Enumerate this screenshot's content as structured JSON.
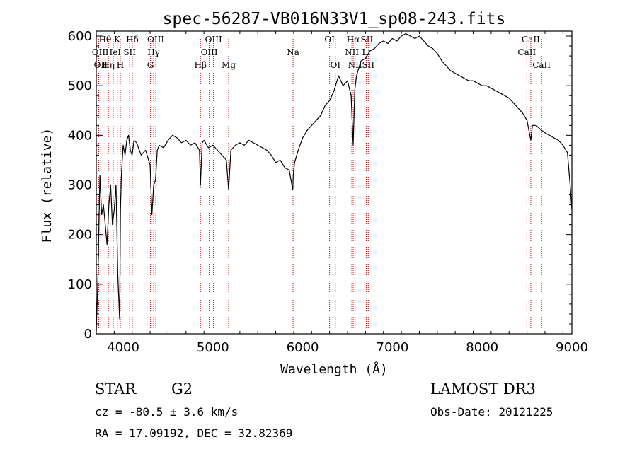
{
  "chart_data": {
    "type": "line",
    "title": "spec-56287-VB016N33V1_sp08-243.fits",
    "xlabel": "Wavelength (Å)",
    "ylabel": "Flux (relative)",
    "xlim": [
      3700,
      9000
    ],
    "ylim": [
      0,
      610
    ],
    "x_ticks": [
      4000,
      5000,
      6000,
      7000,
      8000,
      9000
    ],
    "x_tick_labels": [
      "4000",
      "5000",
      "6000",
      "7000",
      "8000",
      "9000"
    ],
    "y_ticks": [
      0,
      100,
      200,
      300,
      400,
      500,
      600
    ],
    "y_tick_labels": [
      "0",
      "100",
      "200",
      "300",
      "400",
      "500",
      "600"
    ],
    "series": [
      {
        "name": "spectrum",
        "x": [
          3700,
          3720,
          3740,
          3760,
          3780,
          3800,
          3820,
          3840,
          3860,
          3880,
          3900,
          3920,
          3940,
          3960,
          3970,
          3980,
          4000,
          4020,
          4040,
          4060,
          4080,
          4100,
          4120,
          4150,
          4200,
          4250,
          4300,
          4320,
          4340,
          4360,
          4380,
          4400,
          4450,
          4500,
          4550,
          4600,
          4650,
          4700,
          4750,
          4800,
          4850,
          4861,
          4880,
          4900,
          4950,
          5000,
          5050,
          5100,
          5150,
          5175,
          5200,
          5250,
          5300,
          5350,
          5400,
          5450,
          5500,
          5550,
          5600,
          5650,
          5700,
          5750,
          5800,
          5850,
          5890,
          5895,
          5910,
          5950,
          6000,
          6050,
          6100,
          6150,
          6200,
          6250,
          6300,
          6350,
          6400,
          6450,
          6500,
          6540,
          6563,
          6580,
          6600,
          6650,
          6700,
          6750,
          6800,
          6850,
          6900,
          6950,
          7000,
          7050,
          7100,
          7150,
          7200,
          7250,
          7300,
          7350,
          7400,
          7450,
          7500,
          7550,
          7600,
          7650,
          7700,
          7750,
          7800,
          7850,
          7900,
          7950,
          8000,
          8050,
          8100,
          8150,
          8200,
          8250,
          8300,
          8350,
          8400,
          8450,
          8500,
          8542,
          8560,
          8600,
          8662,
          8700,
          8750,
          8800,
          8850,
          8900,
          8950,
          8980,
          9000
        ],
        "values": [
          5,
          120,
          320,
          240,
          260,
          220,
          180,
          260,
          300,
          220,
          250,
          300,
          120,
          30,
          250,
          320,
          380,
          360,
          390,
          400,
          370,
          360,
          390,
          385,
          360,
          370,
          340,
          240,
          300,
          310,
          370,
          380,
          375,
          390,
          400,
          395,
          385,
          390,
          380,
          385,
          370,
          300,
          385,
          390,
          375,
          380,
          370,
          360,
          350,
          290,
          370,
          380,
          385,
          380,
          390,
          385,
          380,
          375,
          370,
          360,
          345,
          350,
          335,
          330,
          290,
          320,
          345,
          370,
          395,
          410,
          420,
          430,
          440,
          460,
          470,
          490,
          520,
          500,
          510,
          480,
          380,
          490,
          520,
          550,
          555,
          570,
          575,
          585,
          590,
          585,
          595,
          590,
          600,
          605,
          600,
          595,
          600,
          590,
          580,
          575,
          565,
          550,
          540,
          530,
          525,
          520,
          515,
          510,
          510,
          505,
          500,
          500,
          495,
          490,
          485,
          480,
          475,
          465,
          455,
          445,
          430,
          390,
          420,
          420,
          410,
          405,
          400,
          395,
          390,
          380,
          365,
          300,
          250
        ]
      }
    ],
    "line_markers": [
      {
        "wavelength": 3727,
        "label": "OII",
        "row": 2
      },
      {
        "wavelength": 3750,
        "label": "OII",
        "row": 3
      },
      {
        "wavelength": 3798,
        "label": "Hθ",
        "row": 1
      },
      {
        "wavelength": 3835,
        "label": "Hη",
        "row": 3
      },
      {
        "wavelength": 3889,
        "label": "HeI",
        "row": 2
      },
      {
        "wavelength": 3934,
        "label": "K",
        "row": 1
      },
      {
        "wavelength": 3968,
        "label": "H",
        "row": 3
      },
      {
        "wavelength": 4072,
        "label": "SII",
        "row": 2
      },
      {
        "wavelength": 4102,
        "label": "Hδ",
        "row": 1
      },
      {
        "wavelength": 4304,
        "label": "G",
        "row": 3
      },
      {
        "wavelength": 4340,
        "label": "Hγ",
        "row": 2
      },
      {
        "wavelength": 4363,
        "label": "OIII",
        "row": 1
      },
      {
        "wavelength": 4861,
        "label": "Hβ",
        "row": 3
      },
      {
        "wavelength": 4959,
        "label": "OIII",
        "row": 2
      },
      {
        "wavelength": 5007,
        "label": "OIII",
        "row": 1
      },
      {
        "wavelength": 5175,
        "label": "Mg",
        "row": 3
      },
      {
        "wavelength": 5893,
        "label": "Na",
        "row": 2
      },
      {
        "wavelength": 6300,
        "label": "OI",
        "row": 1
      },
      {
        "wavelength": 6364,
        "label": "OI",
        "row": 3
      },
      {
        "wavelength": 6548,
        "label": "NII",
        "row": 2
      },
      {
        "wavelength": 6563,
        "label": "Hα",
        "row": 1
      },
      {
        "wavelength": 6584,
        "label": "NII",
        "row": 3
      },
      {
        "wavelength": 6708,
        "label": "Li",
        "row": 2
      },
      {
        "wavelength": 6716,
        "label": "SII",
        "row": 1
      },
      {
        "wavelength": 6731,
        "label": "SII",
        "row": 3
      },
      {
        "wavelength": 8498,
        "label": "CaII",
        "row": 2
      },
      {
        "wavelength": 8542,
        "label": "CaII",
        "row": 1
      },
      {
        "wavelength": 8662,
        "label": "CaII",
        "row": 3
      }
    ]
  },
  "info": {
    "class": "STAR",
    "subclass": "G2",
    "survey": "LAMOST DR3",
    "redshift": "cz = -80.5 ± 3.6 km/s",
    "obs_date": "Obs-Date: 20121225",
    "coords": "RA =  17.09192, DEC =  32.82369"
  },
  "colors": {
    "axis": "#000000",
    "spectrum": "#000000",
    "marker_line": "#cc0000",
    "background": "#ffffff"
  }
}
